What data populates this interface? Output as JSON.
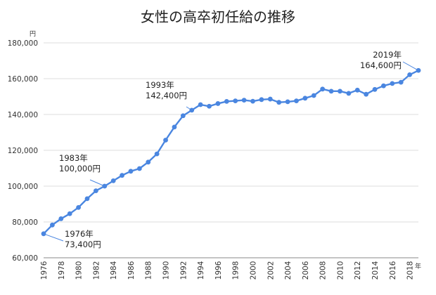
{
  "chart_data": {
    "type": "line",
    "title": "女性の高卒初任給の推移",
    "y_unit": "円",
    "x_unit": "年",
    "ylim": [
      60000,
      180000
    ],
    "yticks": [
      "60,000",
      "80,000",
      "100,000",
      "120,000",
      "140,000",
      "160,000",
      "180,000"
    ],
    "ytick_values": [
      60000,
      80000,
      100000,
      120000,
      140000,
      160000,
      180000
    ],
    "xlim": [
      1976,
      2019
    ],
    "xticks": [
      "1976",
      "1978",
      "1980",
      "1982",
      "1984",
      "1986",
      "1988",
      "1990",
      "1992",
      "1994",
      "1996",
      "1998",
      "2000",
      "2002",
      "2004",
      "2006",
      "2008",
      "2010",
      "2012",
      "2014",
      "2016",
      "2018"
    ],
    "xtick_values": [
      1976,
      1978,
      1980,
      1982,
      1984,
      1986,
      1988,
      1990,
      1992,
      1994,
      1996,
      1998,
      2000,
      2002,
      2004,
      2006,
      2008,
      2010,
      2012,
      2014,
      2016,
      2018
    ],
    "grid": true,
    "color": "#4a86e0",
    "series": [
      {
        "x": [
          1976,
          1977,
          1978,
          1979,
          1980,
          1981,
          1982,
          1983,
          1984,
          1985,
          1986,
          1987,
          1988,
          1989,
          1990,
          1991,
          1992,
          1993,
          1994,
          1995,
          1996,
          1997,
          1998,
          1999,
          2000,
          2001,
          2002,
          2003,
          2004,
          2005,
          2006,
          2007,
          2008,
          2009,
          2010,
          2011,
          2012,
          2013,
          2014,
          2015,
          2016,
          2017,
          2018,
          2019
        ],
        "y": [
          73400,
          78300,
          81800,
          84600,
          88100,
          93000,
          97400,
          100000,
          103000,
          106000,
          108300,
          109800,
          113400,
          118000,
          125700,
          133000,
          139300,
          142400,
          145500,
          144600,
          146100,
          147300,
          147600,
          148000,
          147400,
          148300,
          148600,
          146800,
          147100,
          147600,
          149100,
          150600,
          154200,
          153000,
          153000,
          151800,
          153600,
          151300,
          154000,
          156000,
          157300,
          158000,
          162200,
          164600
        ]
      }
    ],
    "annotations": [
      {
        "year": "1976年",
        "value": "73,400円",
        "x": 1976,
        "y": 73400
      },
      {
        "year": "1983年",
        "value": "100,000円",
        "x": 1983,
        "y": 100000
      },
      {
        "year": "1993年",
        "value": "142,400円",
        "x": 1993,
        "y": 142400
      },
      {
        "year": "2019年",
        "value": "164,600円",
        "x": 2019,
        "y": 164600
      }
    ]
  }
}
